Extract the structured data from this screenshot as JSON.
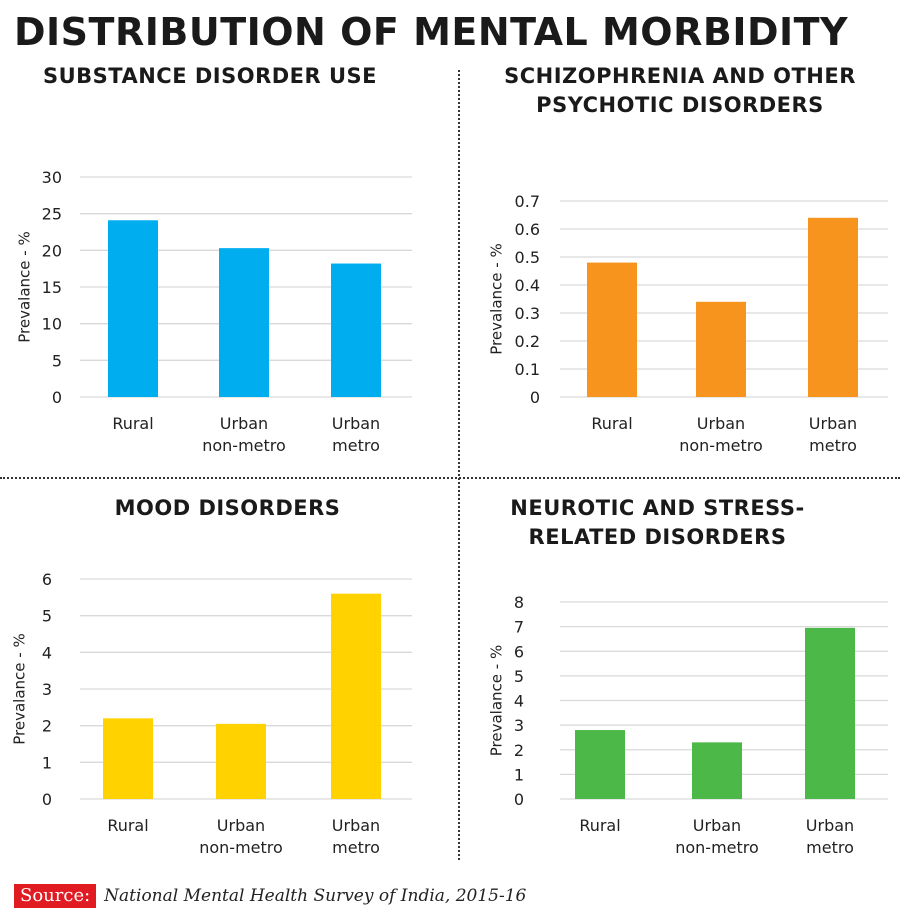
{
  "title": "DISTRIBUTION OF MENTAL MORBIDITY",
  "source": {
    "label": "Source:",
    "text": "National Mental Health Survey of India, 2015-16"
  },
  "chart_data": [
    {
      "type": "bar",
      "title_lines": [
        "SUBSTANCE DISORDER USE"
      ],
      "categories": [
        [
          "Rural"
        ],
        [
          "Urban",
          "non-metro"
        ],
        [
          "Urban",
          "metro"
        ]
      ],
      "values": [
        24.1,
        20.3,
        18.2
      ],
      "ylabel": "Prevalance - %",
      "ylim": [
        0,
        30
      ],
      "yticks": [
        "0",
        "5",
        "10",
        "15",
        "20",
        "25",
        "30"
      ],
      "color": "#00aeef",
      "grid": true
    },
    {
      "type": "bar",
      "title_lines": [
        "SCHIZOPHRENIA AND OTHER",
        "PSYCHOTIC DISORDERS"
      ],
      "categories": [
        [
          "Rural"
        ],
        [
          "Urban",
          "non-metro"
        ],
        [
          "Urban",
          "metro"
        ]
      ],
      "values": [
        0.48,
        0.34,
        0.64
      ],
      "ylabel": "Prevalance - %",
      "ylim": [
        0,
        0.7
      ],
      "yticks": [
        "0",
        "0.1",
        "0.2",
        "0.3",
        "0.4",
        "0.5",
        "0.6",
        "0.7"
      ],
      "color": "#f7941d",
      "grid": true
    },
    {
      "type": "bar",
      "title_lines": [
        "MOOD DISORDERS"
      ],
      "categories": [
        [
          "Rural"
        ],
        [
          "Urban",
          "non-metro"
        ],
        [
          "Urban",
          "metro"
        ]
      ],
      "values": [
        2.2,
        2.05,
        5.6
      ],
      "ylabel": "Prevalance - %",
      "ylim": [
        0,
        6
      ],
      "yticks": [
        "0",
        "1",
        "2",
        "3",
        "4",
        "5",
        "6"
      ],
      "color": "#ffd200",
      "grid": true
    },
    {
      "type": "bar",
      "title_lines": [
        "NEUROTIC AND STRESS-",
        "RELATED DISORDERS"
      ],
      "categories": [
        [
          "Rural"
        ],
        [
          "Urban",
          "non-metro"
        ],
        [
          "Urban",
          "metro"
        ]
      ],
      "values": [
        2.8,
        2.3,
        6.95
      ],
      "ylabel": "Prevalance - %",
      "ylim": [
        0,
        8
      ],
      "yticks": [
        "0",
        "1",
        "2",
        "3",
        "4",
        "5",
        "6",
        "7",
        "8"
      ],
      "color": "#4cb848",
      "grid": true
    }
  ]
}
